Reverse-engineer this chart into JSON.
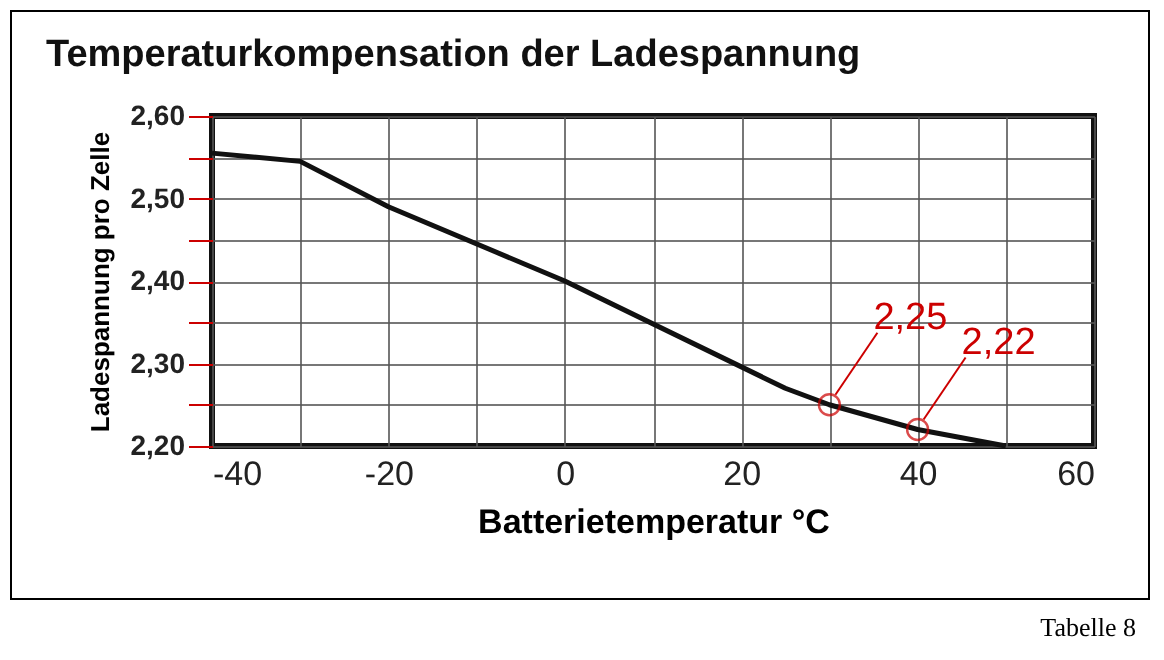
{
  "chart_data": {
    "type": "line",
    "title": "Temperaturkompensation der Ladespannung",
    "xlabel": "Batterietemperatur °C",
    "ylabel": "Ladespannung pro Zelle",
    "x": [
      -40,
      -30,
      -20,
      0,
      25,
      30,
      40,
      50
    ],
    "series": [
      {
        "color": "#111111",
        "values": [
          2.555,
          2.545,
          2.49,
          2.4,
          2.27,
          2.25,
          2.22,
          2.2
        ]
      }
    ],
    "xlim": [
      -40,
      60
    ],
    "xticks": [
      -40,
      {
        "value": -30,
        "label": null
      },
      -20,
      {
        "value": -10,
        "label": null
      },
      0,
      {
        "value": 10,
        "label": null
      },
      20,
      {
        "value": 30,
        "label": null
      },
      40,
      {
        "value": 50,
        "label": null
      },
      60
    ],
    "ylim": [
      2.2,
      2.6
    ],
    "yticks": [
      {
        "value": 2.2,
        "label": "2,20"
      },
      {
        "value": 2.25,
        "label": null
      },
      {
        "value": 2.3,
        "label": "2,30"
      },
      {
        "value": 2.35,
        "label": null
      },
      {
        "value": 2.4,
        "label": "2,40"
      },
      {
        "value": 2.45,
        "label": null
      },
      {
        "value": 2.5,
        "label": "2,50"
      },
      {
        "value": 2.55,
        "label": null
      },
      {
        "value": 2.6,
        "label": "2,60"
      }
    ],
    "grid": true,
    "annotations": [
      {
        "text": "2,25",
        "x": 30,
        "y": 2.25
      },
      {
        "text": "2,22",
        "x": 40,
        "y": 2.22
      },
      "Tabelle 8"
    ]
  }
}
